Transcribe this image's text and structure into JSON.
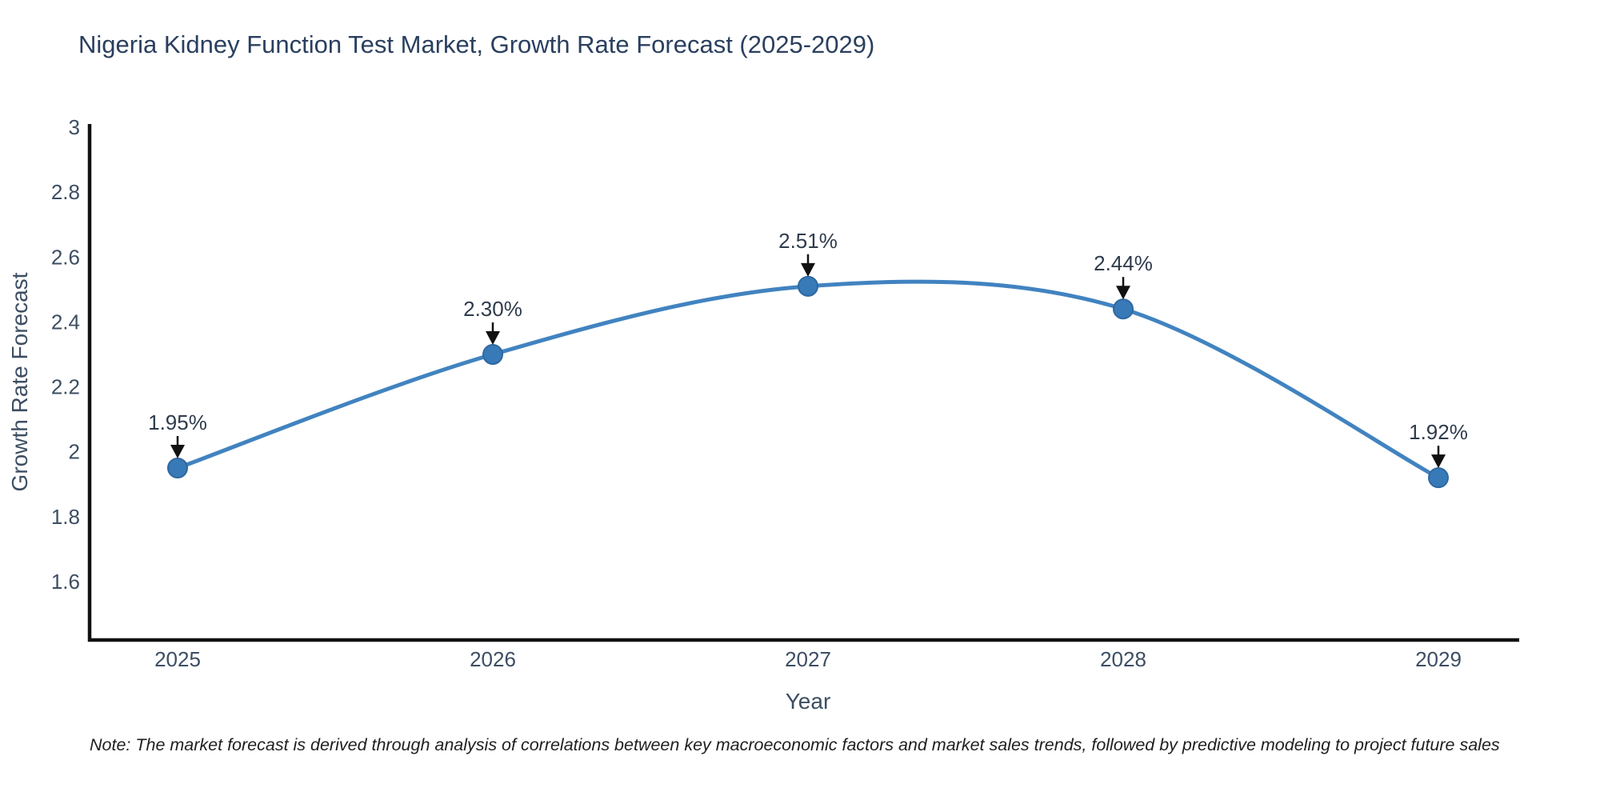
{
  "title": "Nigeria Kidney Function Test Market, Growth Rate Forecast (2025-2029)",
  "note": {
    "text": "Note: The market forecast is derived through analysis of correlations between key macroeconomic factors and market sales trends, followed by predictive modeling to project future sales"
  },
  "chart_data": {
    "type": "line",
    "title": "Nigeria Kidney Function Test Market, Growth Rate Forecast (2025-2029)",
    "xlabel": "Year",
    "ylabel": "Growth Rate Forecast",
    "categories": [
      "2025",
      "2026",
      "2027",
      "2028",
      "2029"
    ],
    "series": [
      {
        "name": "Growth Rate Forecast",
        "values": [
          1.95,
          2.3,
          2.51,
          2.44,
          1.92
        ]
      }
    ],
    "point_labels": [
      "1.95%",
      "2.30%",
      "2.51%",
      "2.44%",
      "1.92%"
    ],
    "yticks": [
      "3",
      "2.8",
      "2.6",
      "2.4",
      "2.2",
      "2",
      "1.8",
      "1.6"
    ],
    "ylim": [
      1.42,
      3.01
    ],
    "line_shape": "spline",
    "grid": false,
    "legend": "none",
    "colors": {
      "line": "#4183c0",
      "marker": "#3879b8",
      "marker_edge": "#2e68a0",
      "axis": "#111111",
      "text": "#2a3f5f",
      "annotation": "#2f3b4c",
      "arrow": "#111111",
      "background": "#ffffff"
    }
  }
}
